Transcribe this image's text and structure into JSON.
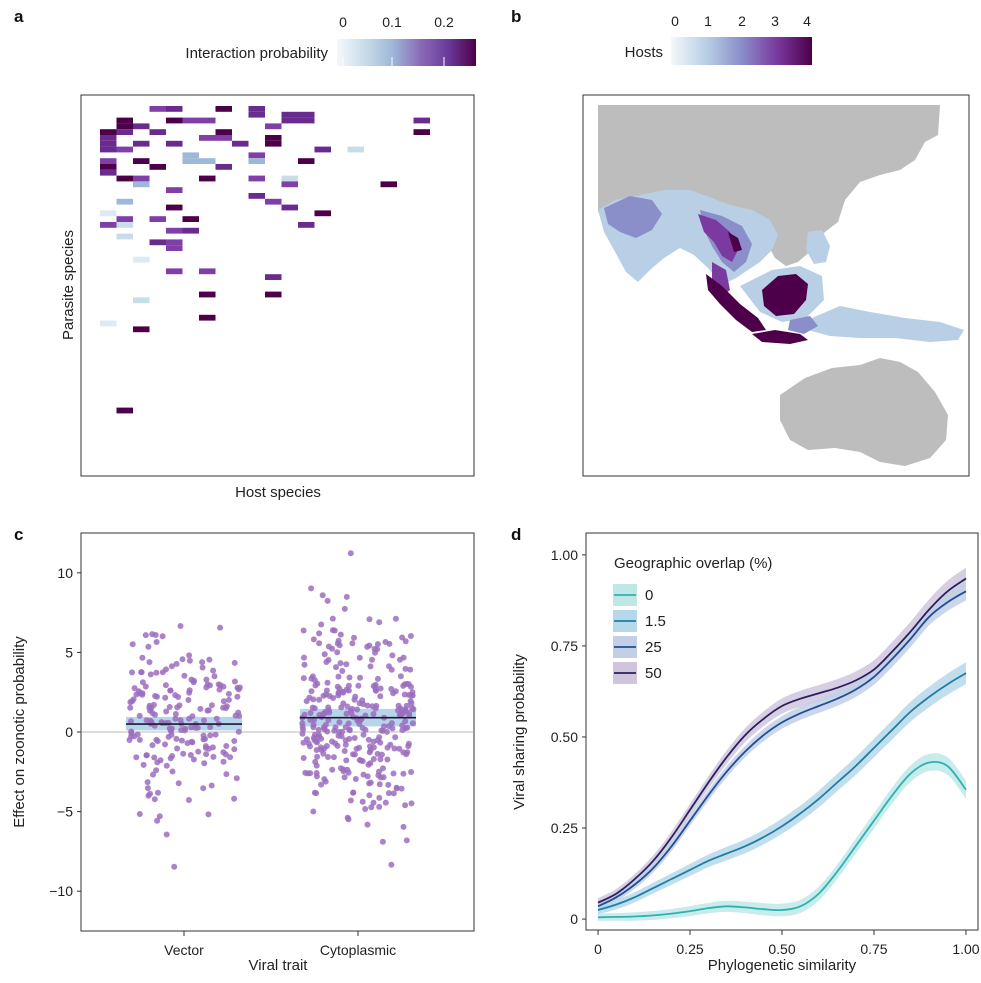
{
  "panels": {
    "a": {
      "letter": "a",
      "colorbar": {
        "title": "Interaction probability",
        "ticks": [
          "0",
          "0.1",
          "0.2"
        ],
        "colors": [
          "#f3f8fb",
          "#c9dcea",
          "#9fb7d8",
          "#8a6bb8",
          "#6a3a9a",
          "#4d0049"
        ]
      },
      "xlabel": "Host species",
      "ylabel": "Parasite species"
    },
    "b": {
      "letter": "b",
      "colorbar": {
        "title": "Hosts",
        "ticks": [
          "0",
          "1",
          "2",
          "3",
          "4"
        ],
        "colors": [
          "#f3f8fb",
          "#b9cfe5",
          "#8a8ec9",
          "#7a3aa0",
          "#4d0049"
        ]
      },
      "land_color": "#bdbdbd"
    },
    "c": {
      "letter": "c"
    },
    "d": {
      "letter": "d"
    }
  },
  "chart_data": [
    {
      "panel": "a",
      "type": "heatmap",
      "xlabel": "Host species",
      "ylabel": "Parasite species",
      "colorbar_title": "Interaction probability",
      "colorbar_ticks": [
        0,
        0.1,
        0.2
      ]
    },
    {
      "panel": "b",
      "type": "map",
      "colorbar_title": "Hosts",
      "colorbar_ticks": [
        0,
        1,
        2,
        3,
        4
      ]
    },
    {
      "panel": "c",
      "type": "scatter",
      "xlabel": "Viral trait",
      "ylabel": "Effect on zoonotic probability",
      "categories": [
        "Vector",
        "Cytoplasmic"
      ],
      "yticks": [
        -10,
        -5,
        0,
        5,
        10
      ],
      "ylim": [
        -12.5,
        12.5
      ],
      "estimates": [
        {
          "category": "Vector",
          "value": 0.5,
          "ci": [
            0.1,
            0.95
          ]
        },
        {
          "category": "Cytoplasmic",
          "value": 0.9,
          "ci": [
            0.35,
            1.45
          ]
        }
      ],
      "point_color": "#9b6dc0",
      "band_color": "#9ec5e3",
      "points_per_category": [
        200,
        330
      ]
    },
    {
      "panel": "d",
      "type": "line",
      "xlabel": "Phylogenetic similarity",
      "ylabel": "Viral sharing probability",
      "xticks": [
        "0",
        "0.25",
        "0.50",
        "0.75",
        "1.00"
      ],
      "yticks": [
        "0",
        "0.25",
        "0.50",
        "0.75",
        "1.00"
      ],
      "xlim": [
        -0.03,
        1.03
      ],
      "ylim": [
        -0.03,
        1.06
      ],
      "legend_title": "Geographic overlap (%)",
      "legend_position": "top-left",
      "x": [
        0,
        0.05,
        0.1,
        0.15,
        0.2,
        0.25,
        0.3,
        0.35,
        0.4,
        0.45,
        0.5,
        0.55,
        0.6,
        0.65,
        0.7,
        0.75,
        0.8,
        0.85,
        0.9,
        0.95,
        1.0
      ],
      "series": [
        {
          "name": "0",
          "color": "#2bb3b0",
          "band": "#bfe7e8",
          "values": [
            0.005,
            0.006,
            0.007,
            0.01,
            0.015,
            0.022,
            0.03,
            0.035,
            0.032,
            0.027,
            0.025,
            0.035,
            0.07,
            0.13,
            0.2,
            0.27,
            0.34,
            0.4,
            0.43,
            0.42,
            0.355
          ],
          "halfwidth": 0.025
        },
        {
          "name": "1.5",
          "color": "#1d7fa6",
          "band": "#b7d8ea",
          "values": [
            0.025,
            0.04,
            0.06,
            0.085,
            0.11,
            0.135,
            0.16,
            0.18,
            0.2,
            0.225,
            0.255,
            0.29,
            0.33,
            0.375,
            0.42,
            0.47,
            0.52,
            0.57,
            0.61,
            0.645,
            0.675
          ],
          "halfwidth": 0.03
        },
        {
          "name": "25",
          "color": "#1f4f93",
          "band": "#c2cfe6",
          "values": [
            0.035,
            0.06,
            0.095,
            0.14,
            0.2,
            0.27,
            0.34,
            0.405,
            0.46,
            0.505,
            0.54,
            0.565,
            0.585,
            0.605,
            0.63,
            0.665,
            0.715,
            0.77,
            0.83,
            0.87,
            0.9
          ],
          "halfwidth": 0.025
        },
        {
          "name": "50",
          "color": "#2b1f5e",
          "band": "#cfc6dd",
          "values": [
            0.045,
            0.07,
            0.11,
            0.16,
            0.225,
            0.3,
            0.375,
            0.445,
            0.505,
            0.55,
            0.585,
            0.605,
            0.62,
            0.635,
            0.655,
            0.685,
            0.735,
            0.79,
            0.85,
            0.9,
            0.935
          ],
          "halfwidth": 0.03
        }
      ]
    }
  ]
}
